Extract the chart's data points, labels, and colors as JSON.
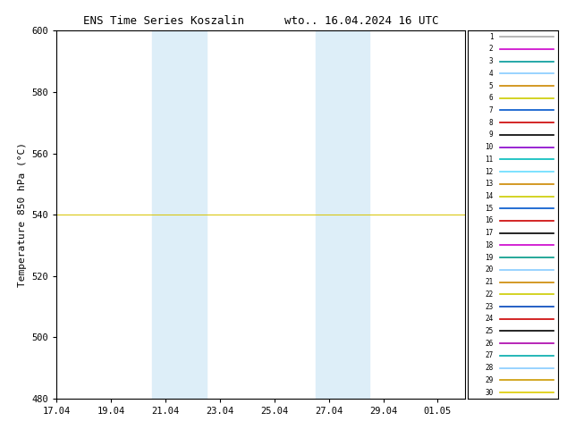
{
  "title": "ENS Time Series Koszalin      wto.. 16.04.2024 16 UTC",
  "ylabel": "Temperature 850 hPa (°C)",
  "ylim": [
    480,
    600
  ],
  "yticks": [
    480,
    500,
    520,
    540,
    560,
    580,
    600
  ],
  "xtick_labels": [
    "17.04",
    "19.04",
    "21.04",
    "23.04",
    "25.04",
    "27.04",
    "29.04",
    "01.05"
  ],
  "xtick_positions_days": [
    0,
    2,
    4,
    6,
    8,
    10,
    12,
    14
  ],
  "total_days": 15,
  "xlim": [
    0,
    15
  ],
  "shaded_regions": [
    {
      "xstart_day": 3.5,
      "xend_day": 5.5
    },
    {
      "xstart_day": 9.5,
      "xend_day": 11.5
    }
  ],
  "shade_color": "#ddeef8",
  "background_color": "#ffffff",
  "member_colors": [
    "#aaaaaa",
    "#cc00cc",
    "#009999",
    "#88ccff",
    "#cc8800",
    "#cccc00",
    "#0055cc",
    "#cc0000",
    "#000000",
    "#8800cc",
    "#00bbbb",
    "#66ddff",
    "#cc8800",
    "#cccc00",
    "#0055cc",
    "#cc0000",
    "#000000",
    "#cc00cc",
    "#009988",
    "#88ccff",
    "#cc8800",
    "#cccc00",
    "#0044bb",
    "#cc0000",
    "#000000",
    "#aa00aa",
    "#00aaaa",
    "#88ccff",
    "#cc9900",
    "#ddcc00"
  ],
  "num_members": 30,
  "title_fontsize": 9,
  "axis_fontsize": 8,
  "tick_fontsize": 7.5,
  "legend_fontsize": 5.5
}
